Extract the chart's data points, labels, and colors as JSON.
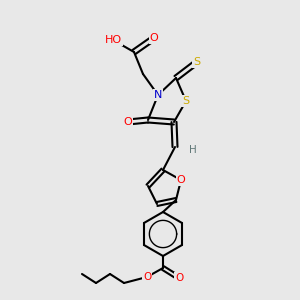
{
  "bg": "#e8e8e8",
  "bond_lw": 1.5,
  "font_size": 8.0,
  "colors": {
    "C": "#000000",
    "O": "#ff0000",
    "N": "#0000cc",
    "S": "#ccaa00",
    "H": "#607878"
  },
  "figsize": [
    3.0,
    3.0
  ],
  "dpi": 100
}
